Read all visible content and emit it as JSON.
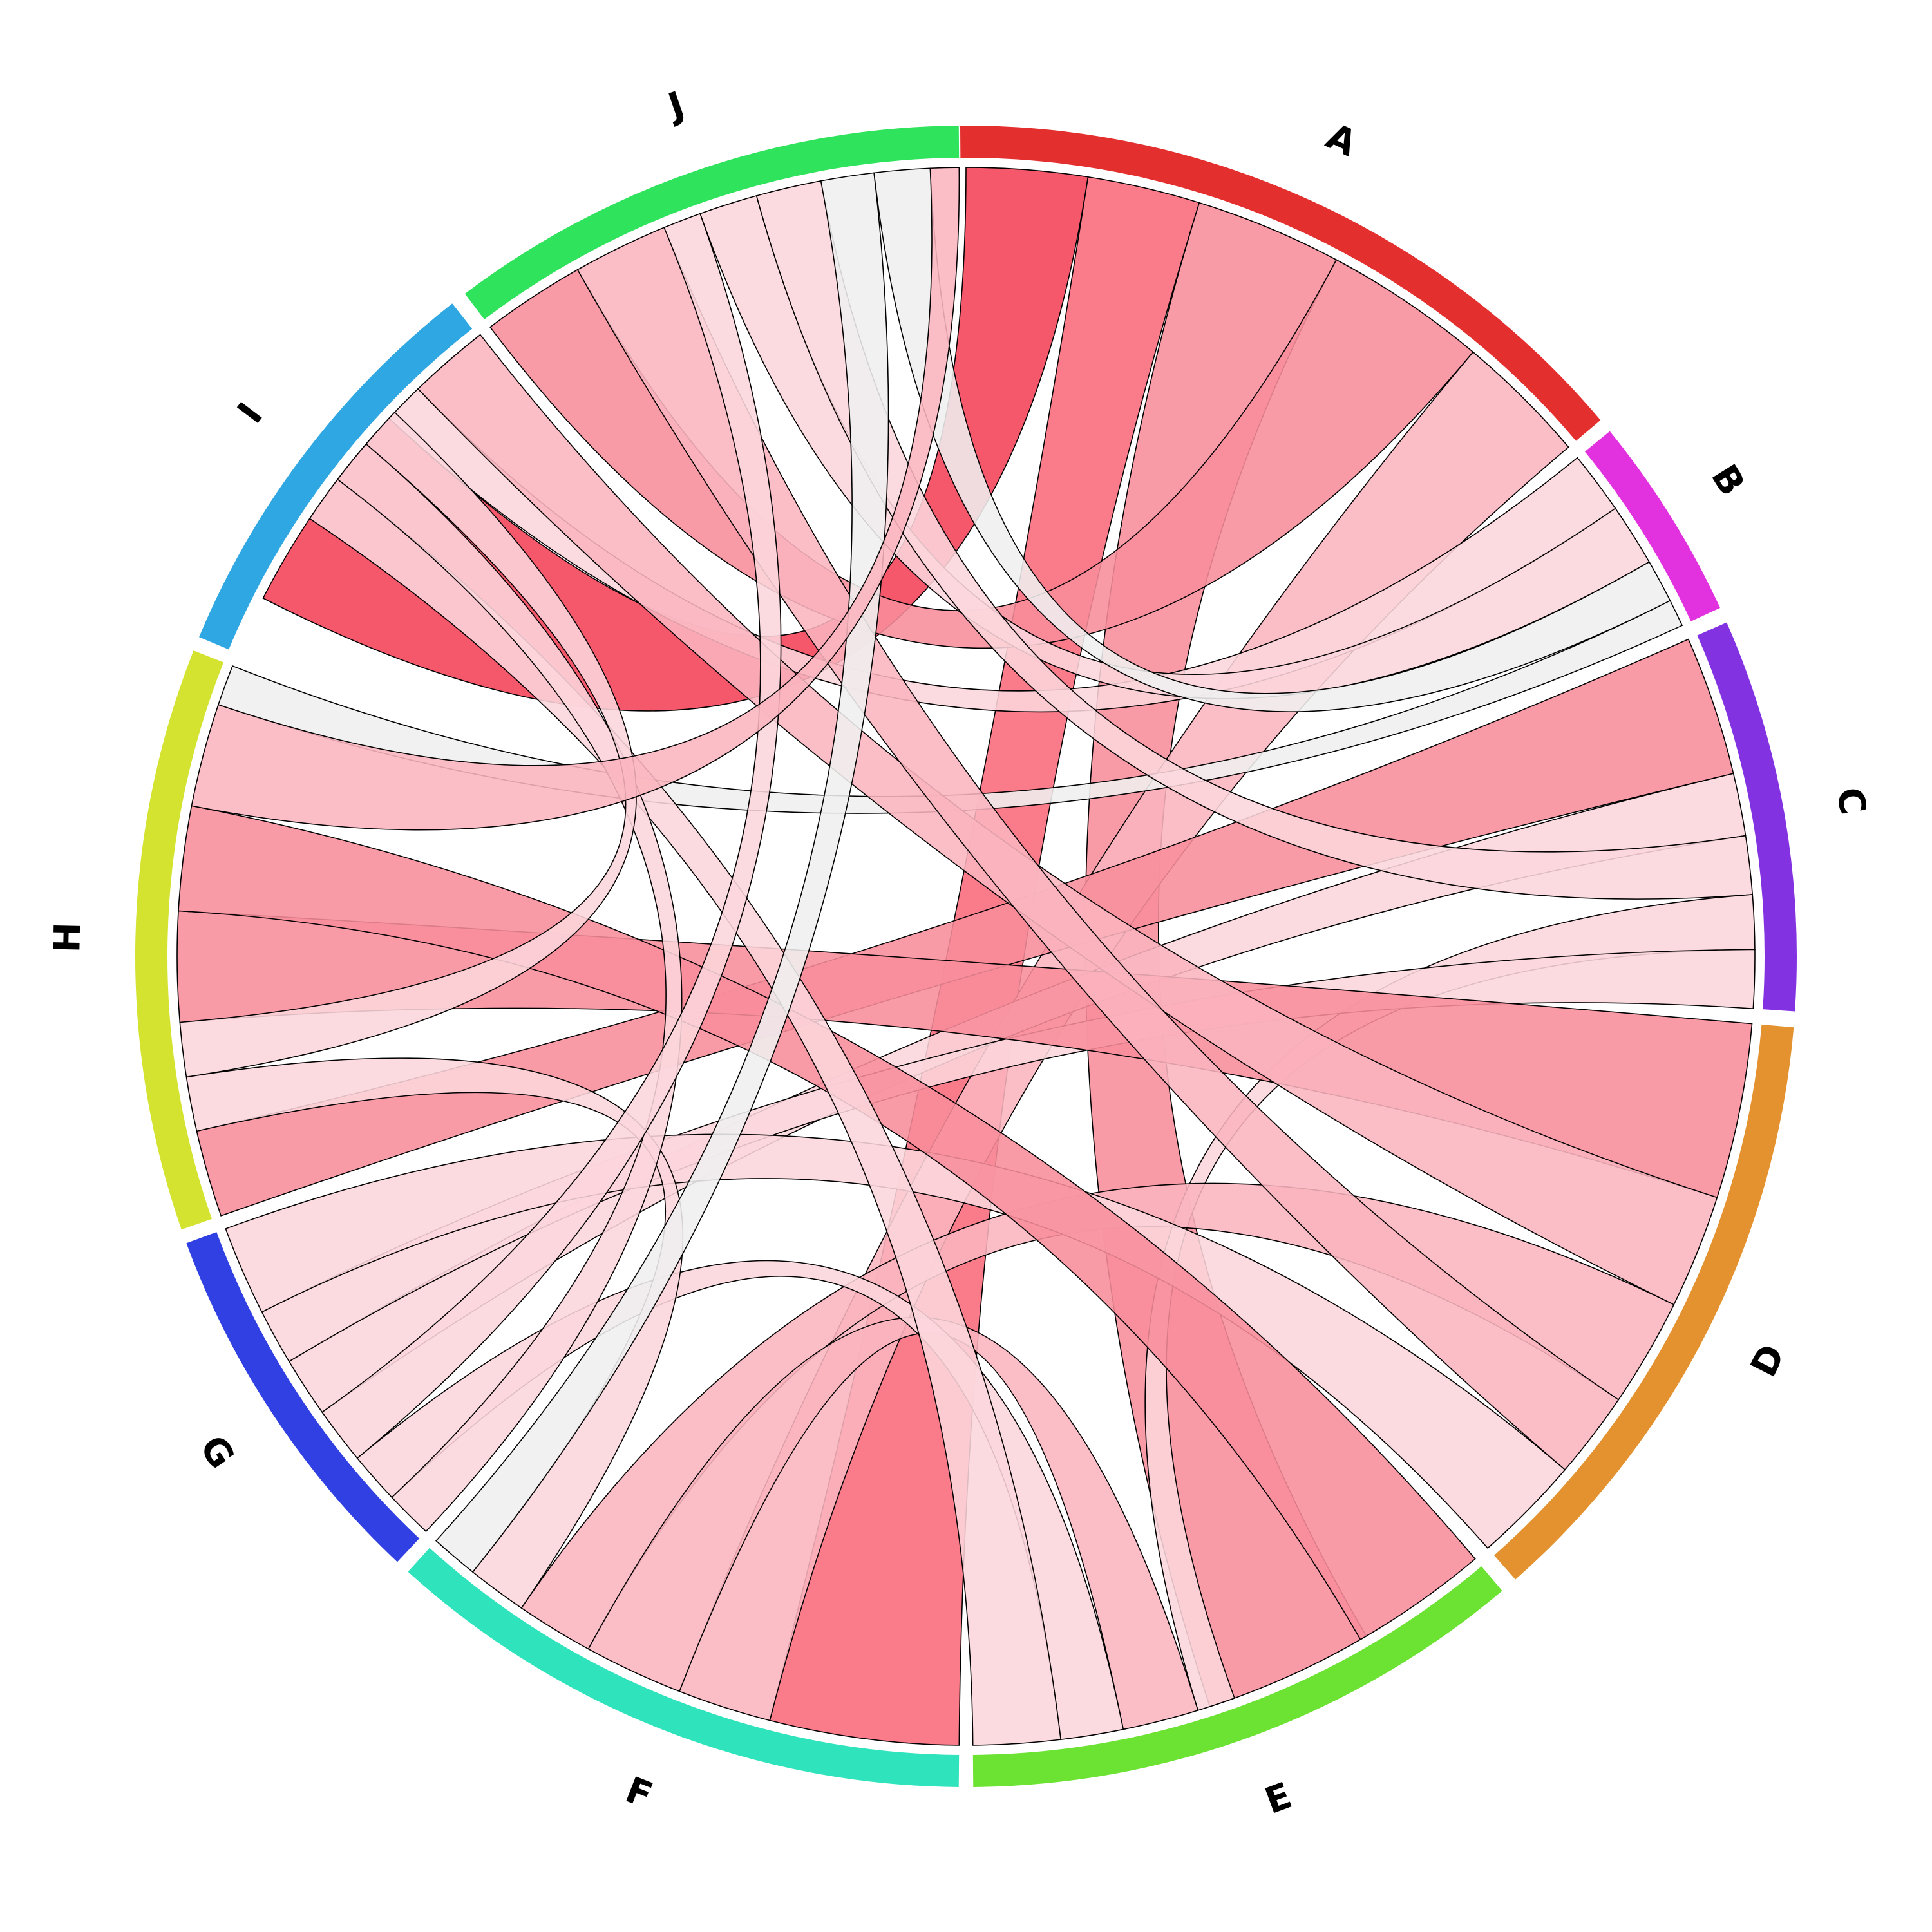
{
  "chart_data": {
    "type": "chord",
    "title": "",
    "segments": [
      {
        "name": "A",
        "color": "#E3302F",
        "start_deg": -0.4,
        "end_deg": 49.8
      },
      {
        "name": "B",
        "color": "#E232E0",
        "start_deg": 50.8,
        "end_deg": 65.2
      },
      {
        "name": "C",
        "color": "#8332E2",
        "start_deg": 66.3,
        "end_deg": 93.8
      },
      {
        "name": "D",
        "color": "#E3922F",
        "start_deg": 94.9,
        "end_deg": 138.6
      },
      {
        "name": "E",
        "color": "#6CE232",
        "start_deg": 139.8,
        "end_deg": 179.5
      },
      {
        "name": "F",
        "color": "#2FE3BC",
        "start_deg": 180.5,
        "end_deg": 222.2
      },
      {
        "name": "G",
        "color": "#3040E3",
        "start_deg": 223.2,
        "end_deg": 249.8
      },
      {
        "name": "H",
        "color": "#D3E32F",
        "start_deg": 250.8,
        "end_deg": 291.6
      },
      {
        "name": "I",
        "color": "#2EA7E3",
        "start_deg": 292.6,
        "end_deg": 321.8
      },
      {
        "name": "J",
        "color": "#2FE35C",
        "start_deg": 322.9,
        "end_deg": 359.5
      }
    ],
    "ribbons": [
      {
        "source": "A",
        "source_span": [
          0,
          8.9
        ],
        "target": "I",
        "target_span": [
          297,
          313
        ],
        "value": 9.0,
        "color": "#F44056"
      },
      {
        "source": "A",
        "source_span": [
          8.9,
          17.2
        ],
        "target": "F",
        "target_span": [
          180.5,
          194.4
        ],
        "value": 8.0,
        "color": "#F96A7B"
      },
      {
        "source": "A",
        "source_span": [
          17.2,
          28
        ],
        "target": "E",
        "target_span": [
          149.5,
          162
        ],
        "value": 6.0,
        "color": "#F88D9B"
      },
      {
        "source": "A",
        "source_span": [
          28,
          40
        ],
        "target": "J",
        "target_span": [
          322.9,
          330.5
        ],
        "value": 6.0,
        "color": "#F88D9B"
      },
      {
        "source": "A",
        "source_span": [
          40,
          49.8
        ],
        "target": "F",
        "target_span": [
          194.4,
          201.3
        ],
        "value": 4.0,
        "color": "#FAB4BE"
      },
      {
        "source": "B",
        "source_span": [
          50.8,
          55.4
        ],
        "target": "I",
        "target_span": [
          313,
          316
        ],
        "value": 2.0,
        "color": "#FCD6DC"
      },
      {
        "source": "B",
        "source_span": [
          55.4,
          60
        ],
        "target": "J",
        "target_span": [
          340.3,
          344.6
        ],
        "value": 2.0,
        "color": "#FCD6DC"
      },
      {
        "source": "B",
        "source_span": [
          60,
          63.2
        ],
        "target": "J",
        "target_span": [
          353.3,
          357.4
        ],
        "value": 1.0,
        "color": "#EFEFEF"
      },
      {
        "source": "B",
        "source_span": [
          63.2,
          65.2
        ],
        "target": "H",
        "target_span": [
          288.6,
          291.6
        ],
        "value": 1.0,
        "color": "#EFEFEF"
      },
      {
        "source": "C",
        "source_span": [
          66.3,
          76.6
        ],
        "target": "H",
        "target_span": [
          250.8,
          257.2
        ],
        "value": 5.0,
        "color": "#F88D9B"
      },
      {
        "source": "C",
        "source_span": [
          76.6,
          81.2
        ],
        "target": "G",
        "target_span": [
          234.7,
          239.1
        ],
        "value": 2.0,
        "color": "#FCD6DC"
      },
      {
        "source": "C",
        "source_span": [
          81.2,
          85.5
        ],
        "target": "J",
        "target_span": [
          344.6,
          349.4
        ],
        "value": 2.0,
        "color": "#FCD6DC"
      },
      {
        "source": "C",
        "source_span": [
          85.5,
          89.5
        ],
        "target": "E",
        "target_span": [
          160.1,
          162.9
        ],
        "value": 2.0,
        "color": "#FCD6DC"
      },
      {
        "source": "C",
        "source_span": [
          89.5,
          93.8
        ],
        "target": "G",
        "target_span": [
          239.1,
          243.2
        ],
        "value": 2.0,
        "color": "#FCD6DC"
      },
      {
        "source": "D",
        "source_span": [
          94.9,
          107.8
        ],
        "target": "H",
        "target_span": [
          265.2,
          273.3
        ],
        "value": 6.0,
        "color": "#F88D9B"
      },
      {
        "source": "D",
        "source_span": [
          107.8,
          116.2
        ],
        "target": "I",
        "target_span": [
          316,
          322
        ],
        "value": 4.0,
        "color": "#FAB4BE"
      },
      {
        "source": "D",
        "source_span": [
          116.2,
          124.2
        ],
        "target": "F",
        "target_span": [
          208.6,
          214.3
        ],
        "value": 4.0,
        "color": "#FAB4BE"
      },
      {
        "source": "D",
        "source_span": [
          124.2,
          130.6
        ],
        "target": "J",
        "target_span": [
          330.5,
          337.5
        ],
        "value": 3.0,
        "color": "#FAB4BE"
      },
      {
        "source": "D",
        "source_span": [
          130.6,
          138.6
        ],
        "target": "G",
        "target_span": [
          243.2,
          249.8
        ],
        "value": 4.0,
        "color": "#FCD6DC"
      },
      {
        "source": "E",
        "source_span": [
          139.8,
          150
        ],
        "target": "H",
        "target_span": [
          273.3,
          281
        ],
        "value": 5.0,
        "color": "#F88D9B"
      },
      {
        "source": "E",
        "source_span": [
          162.9,
          168.5
        ],
        "target": "F",
        "target_span": [
          201.3,
          208.6
        ],
        "value": 3.0,
        "color": "#FAB4BE"
      },
      {
        "source": "E",
        "source_span": [
          168.5,
          173.1
        ],
        "target": "G",
        "target_span": [
          226.7,
          230.5
        ],
        "value": 2.0,
        "color": "#FCD6DC"
      },
      {
        "source": "E",
        "source_span": [
          173.1,
          179.5
        ],
        "target": "I",
        "target_span": [
          303.7,
          307.2
        ],
        "value": 2.0,
        "color": "#FCD6DC"
      },
      {
        "source": "F",
        "source_span": [
          214.3,
          218.7
        ],
        "target": "H",
        "target_span": [
          257.2,
          261.2
        ],
        "value": 2.0,
        "color": "#FCD6DC"
      },
      {
        "source": "F",
        "source_span": [
          218.7,
          222.2
        ],
        "target": "J",
        "target_span": [
          349.4,
          353.3
        ],
        "value": 1.0,
        "color": "#EFEFEF"
      },
      {
        "source": "G",
        "source_span": [
          223.2,
          226.7
        ],
        "target": "I",
        "target_span": [
          307.2,
          310.5
        ],
        "value": 2.0,
        "color": "#FCD6DC"
      },
      {
        "source": "G",
        "source_span": [
          230.5,
          234.7
        ],
        "target": "J",
        "target_span": [
          337.5,
          340.3
        ],
        "value": 2.0,
        "color": "#FCD6DC"
      },
      {
        "source": "H",
        "source_span": [
          261.2,
          265.2
        ],
        "target": "I",
        "target_span": [
          310.5,
          313.6
        ],
        "value": 2.0,
        "color": "#FCD6DC"
      },
      {
        "source": "H",
        "source_span": [
          281,
          288.6
        ],
        "target": "J",
        "target_span": [
          357.4,
          359.5
        ],
        "value": 3.0,
        "color": "#FAB4BE"
      }
    ]
  }
}
